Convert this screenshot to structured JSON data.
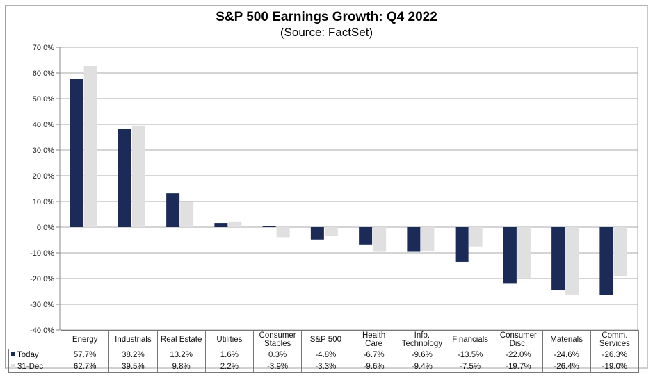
{
  "chart_data": {
    "type": "bar",
    "title": "S&P 500 Earnings Growth: Q4 2022",
    "subtitle": "(Source: FactSet)",
    "xlabel": "",
    "ylabel": "",
    "ylim": [
      -40,
      70
    ],
    "yticks": [
      70,
      60,
      50,
      40,
      30,
      20,
      10,
      0,
      -10,
      -20,
      -30,
      -40
    ],
    "ytick_labels": [
      "70.0%",
      "60.0%",
      "50.0%",
      "40.0%",
      "30.0%",
      "20.0%",
      "10.0%",
      "0.0%",
      "-10.0%",
      "-20.0%",
      "-30.0%",
      "-40.0%"
    ],
    "grid": true,
    "legend": "data-table-left",
    "categories": [
      "Energy",
      "Industrials",
      "Real Estate",
      "Utilities",
      "Consumer Staples",
      "S&P 500",
      "Health Care",
      "Info. Technology",
      "Financials",
      "Consumer Disc.",
      "Materials",
      "Comm. Services"
    ],
    "category_lines": [
      [
        "Energy"
      ],
      [
        "Industrials"
      ],
      [
        "Real Estate"
      ],
      [
        "Utilities"
      ],
      [
        "Consumer",
        "Staples"
      ],
      [
        "S&P 500"
      ],
      [
        "Health",
        "Care"
      ],
      [
        "Info.",
        "Technology"
      ],
      [
        "Financials"
      ],
      [
        "Consumer",
        "Disc."
      ],
      [
        "Materials"
      ],
      [
        "Comm.",
        "Services"
      ]
    ],
    "series": [
      {
        "name": "Today",
        "color": "#1b2a57",
        "values": [
          57.7,
          38.2,
          13.2,
          1.6,
          0.3,
          -4.8,
          -6.7,
          -9.6,
          -13.5,
          -22.0,
          -24.6,
          -26.3
        ],
        "labels": [
          "57.7%",
          "38.2%",
          "13.2%",
          "1.6%",
          "0.3%",
          "-4.8%",
          "-6.7%",
          "-9.6%",
          "-13.5%",
          "-22.0%",
          "-24.6%",
          "-26.3%"
        ]
      },
      {
        "name": "31-Dec",
        "color": "#e0e0e0",
        "values": [
          62.7,
          39.5,
          9.8,
          2.2,
          -3.9,
          -3.3,
          -9.6,
          -9.4,
          -7.5,
          -19.7,
          -26.4,
          -19.0
        ],
        "labels": [
          "62.7%",
          "39.5%",
          "9.8%",
          "2.2%",
          "-3.9%",
          "-3.3%",
          "-9.6%",
          "-9.4%",
          "-7.5%",
          "-19.7%",
          "-26.4%",
          "-19.0%"
        ]
      }
    ]
  }
}
